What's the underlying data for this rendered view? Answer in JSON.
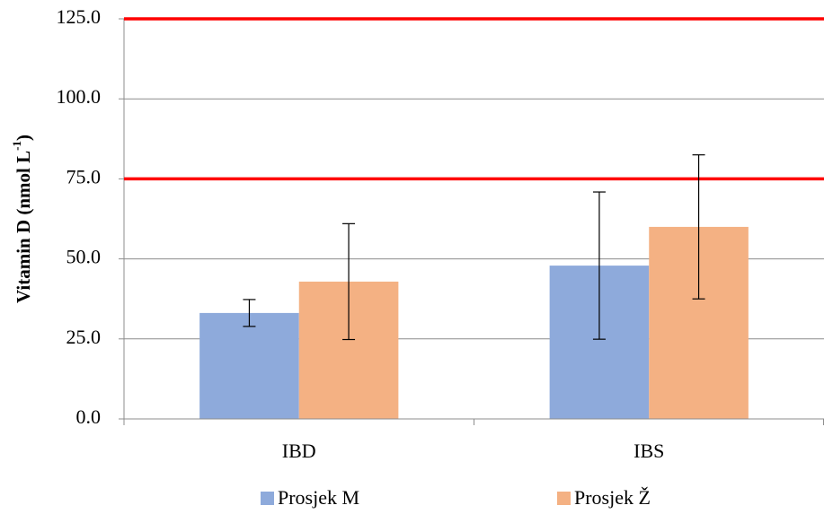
{
  "chart_data": {
    "type": "bar",
    "ylabel": {
      "text": "Vitamin D (nmol L",
      "sup": "-1",
      "close": ")"
    },
    "categories": [
      "IBD",
      "IBS"
    ],
    "series": [
      {
        "name": "Prosjek M",
        "color": "#8eaadb",
        "values": [
          33.1,
          47.9
        ],
        "errors": [
          4.2,
          23.0
        ]
      },
      {
        "name": "Prosjek Ž",
        "color": "#f4b183",
        "values": [
          42.9,
          60.0
        ],
        "errors": [
          18.1,
          22.5
        ]
      }
    ],
    "ylim": [
      0,
      125
    ],
    "yticks": [
      {
        "value": 0,
        "label": "0.0"
      },
      {
        "value": 25,
        "label": "25.0"
      },
      {
        "value": 50,
        "label": "50.0"
      },
      {
        "value": 75,
        "label": "75.0"
      },
      {
        "value": 100,
        "label": "100.0"
      },
      {
        "value": 125,
        "label": "125.0"
      }
    ],
    "grid": true,
    "reference_lines": {
      "color": "#ff0000",
      "values": [
        75,
        125
      ]
    }
  }
}
